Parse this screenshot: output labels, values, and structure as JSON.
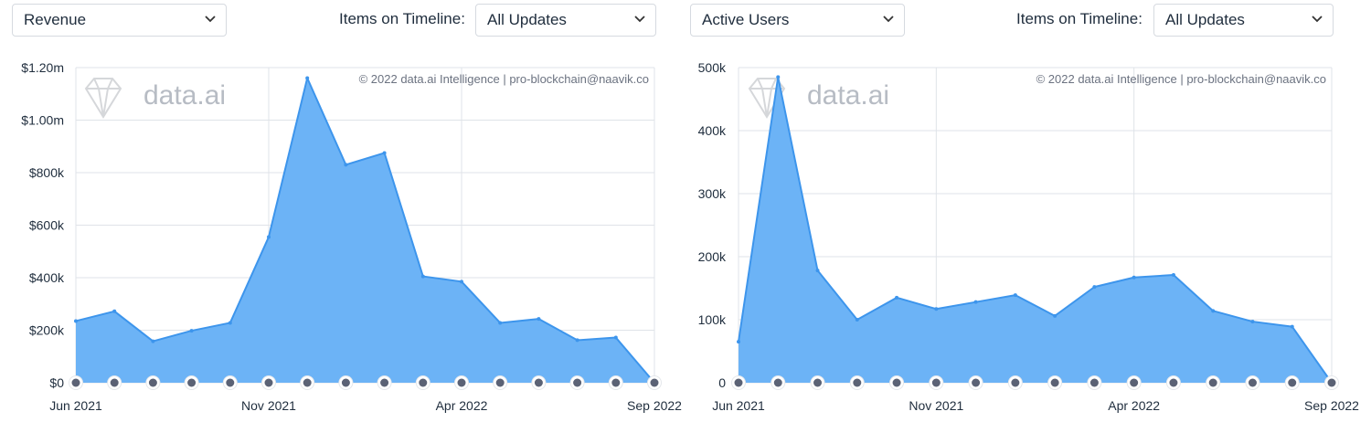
{
  "panels": [
    {
      "metric_dropdown": "Revenue",
      "timeline_label": "Items on Timeline:",
      "timeline_dropdown": "All Updates",
      "watermark_brand": "data.ai",
      "copyright": "© 2022 data.ai Intelligence | pro-blockchain@naavik.co"
    },
    {
      "metric_dropdown": "Active Users",
      "timeline_label": "Items on Timeline:",
      "timeline_dropdown": "All Updates",
      "watermark_brand": "data.ai",
      "copyright": "© 2022 data.ai Intelligence | pro-blockchain@naavik.co"
    }
  ],
  "colors": {
    "fill": "#6cb3f6",
    "line": "#3d95ec",
    "grid": "#dfe3e8",
    "marker": "#5b6275",
    "text": "#1f2d3d"
  },
  "chart_data": [
    {
      "type": "area",
      "title": "Revenue",
      "x": [
        "Jun 2021",
        "Jul 2021",
        "Aug 2021",
        "Sep 2021",
        "Oct 2021",
        "Nov 2021",
        "Dec 2021",
        "Jan 2022",
        "Feb 2022",
        "Mar 2022",
        "Apr 2022",
        "May 2022",
        "Jun 2022",
        "Jul 2022",
        "Aug 2022",
        "Sep 2022"
      ],
      "values": [
        235000,
        272000,
        158000,
        198000,
        228000,
        555000,
        1160000,
        830000,
        875000,
        405000,
        385000,
        228000,
        243000,
        162000,
        172000,
        0
      ],
      "ylim": [
        0,
        1200000
      ],
      "y_ticks": [
        0,
        200000,
        400000,
        600000,
        800000,
        1000000,
        1200000
      ],
      "y_tick_labels": [
        "$0",
        "$200k",
        "$400k",
        "$600k",
        "$800k",
        "$1.00m",
        "$1.20m"
      ],
      "x_tick_labels": [
        "Jun 2021",
        "Nov 2021",
        "Apr 2022",
        "Sep 2022"
      ],
      "x_tick_index": [
        0,
        5,
        10,
        15
      ],
      "grid": true,
      "timeline_markers": 16
    },
    {
      "type": "area",
      "title": "Active Users",
      "x": [
        "Jun 2021",
        "Jul 2021",
        "Aug 2021",
        "Sep 2021",
        "Oct 2021",
        "Nov 2021",
        "Dec 2021",
        "Jan 2022",
        "Feb 2022",
        "Mar 2022",
        "Apr 2022",
        "May 2022",
        "Jun 2022",
        "Jul 2022",
        "Aug 2022",
        "Sep 2022"
      ],
      "values": [
        65000,
        485000,
        178000,
        100000,
        135000,
        117000,
        128000,
        139000,
        106000,
        152000,
        167000,
        171000,
        114000,
        97000,
        89000,
        0
      ],
      "ylim": [
        0,
        500000
      ],
      "y_ticks": [
        0,
        100000,
        200000,
        300000,
        400000,
        500000
      ],
      "y_tick_labels": [
        "0",
        "100k",
        "200k",
        "300k",
        "400k",
        "500k"
      ],
      "x_tick_labels": [
        "Jun 2021",
        "Nov 2021",
        "Apr 2022",
        "Sep 2022"
      ],
      "x_tick_index": [
        0,
        5,
        10,
        15
      ],
      "grid": true,
      "timeline_markers": 16
    }
  ]
}
